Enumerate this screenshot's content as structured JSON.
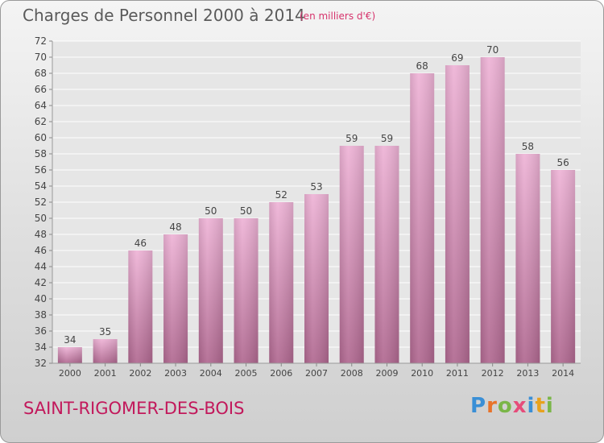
{
  "header": {
    "title": "Charges de Personnel 2000 à 2014",
    "subtitle": "(en milliers d'€)"
  },
  "footer": {
    "commune": "SAINT-RIGOMER-DES-BOIS",
    "logo": "Proxiti"
  },
  "colors": {
    "bar_top": "#eeb3d6",
    "bar_bottom": "#b06890",
    "accent": "#c2185b",
    "logo_letters": [
      "#3a8fd6",
      "#e8732a",
      "#7ab648",
      "#e64c7a",
      "#3a8fd6",
      "#e8a21e",
      "#7ab648"
    ]
  },
  "chart_data": {
    "type": "bar",
    "title": "Charges de Personnel 2000 à 2014",
    "subtitle": "(en milliers d'€)",
    "categories": [
      "2000",
      "2001",
      "2002",
      "2003",
      "2004",
      "2005",
      "2006",
      "2007",
      "2008",
      "2009",
      "2010",
      "2011",
      "2012",
      "2013",
      "2014"
    ],
    "values": [
      34,
      35,
      46,
      48,
      50,
      50,
      52,
      53,
      59,
      59,
      68,
      69,
      70,
      58,
      56
    ],
    "ylim": [
      32,
      72
    ],
    "yticks": [
      32,
      34,
      36,
      38,
      40,
      42,
      44,
      46,
      48,
      50,
      52,
      54,
      56,
      58,
      60,
      62,
      64,
      66,
      68,
      70,
      72
    ],
    "grid": true,
    "data_labels": true
  }
}
